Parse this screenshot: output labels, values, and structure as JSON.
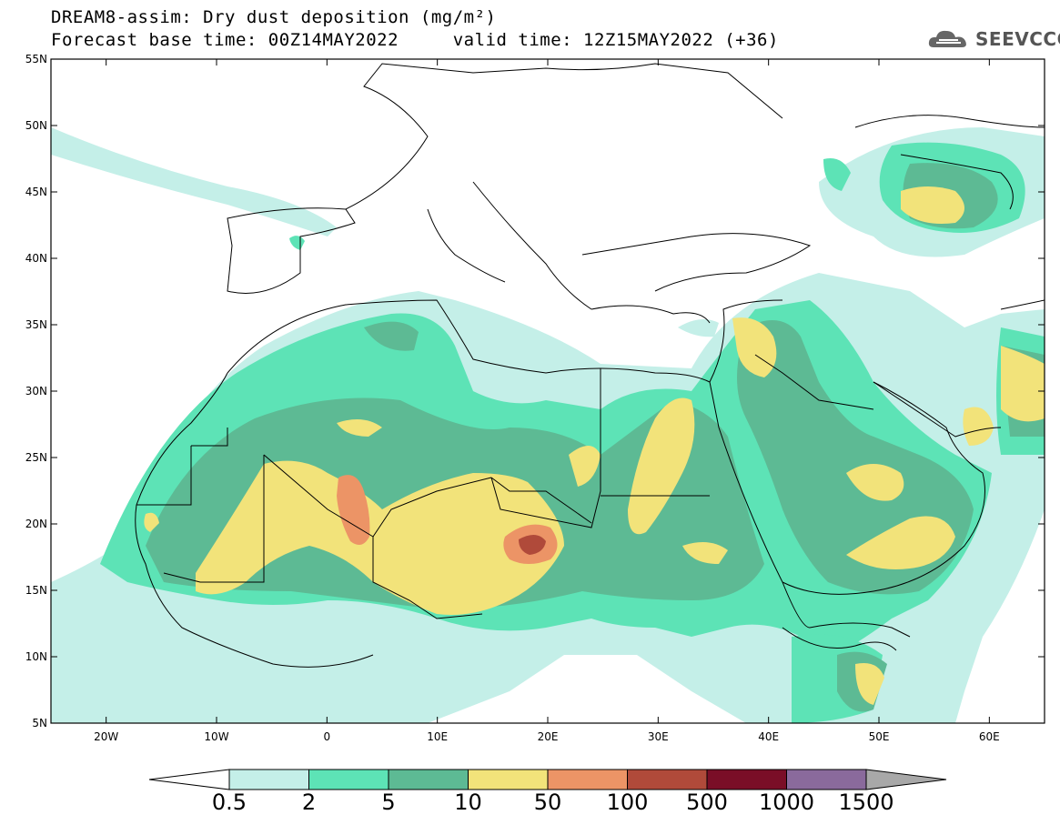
{
  "header": {
    "title_line1": "DREAM8-assim: Dry dust deposition (mg/m²)",
    "title_line2": "Forecast base time: 00Z14MAY2022     valid time: 12Z15MAY2022 (+36)",
    "logo_text": "SEEVCCC",
    "logo_icon": "cloud-icon"
  },
  "map": {
    "projection": "lat-lon",
    "lon_range": [
      -25,
      65
    ],
    "lat_range": [
      5,
      55
    ],
    "lat_labels": [
      "55N",
      "50N",
      "45N",
      "40N",
      "35N",
      "30N",
      "25N",
      "20N",
      "15N",
      "10N",
      "5N"
    ],
    "lon_labels": [
      "20W",
      "10W",
      "0",
      "10E",
      "20E",
      "30E",
      "40E",
      "50E",
      "60E"
    ],
    "background": "#ffffff",
    "coastline_color": "#000000"
  },
  "legend": {
    "labels": [
      "0.5",
      "2",
      "5",
      "10",
      "50",
      "100",
      "500",
      "1000",
      "1500"
    ],
    "colors": [
      "#c4efe8",
      "#5de3b6",
      "#5dba94",
      "#f2e37a",
      "#ec9466",
      "#b04a3a",
      "#7a0e27",
      "#8a6a9c"
    ],
    "under_color": "#ffffff",
    "over_color": "#a8a8a8"
  }
}
